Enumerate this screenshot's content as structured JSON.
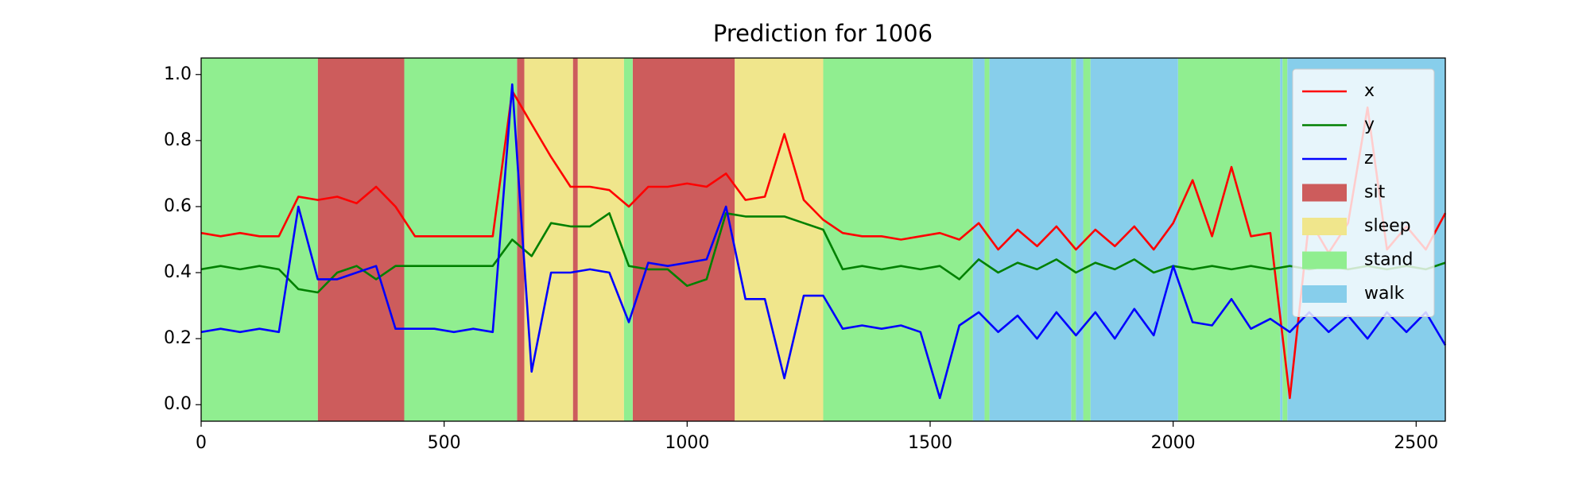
{
  "chart_data": {
    "type": "line",
    "title": "Prediction for 1006",
    "x": [
      0,
      40,
      80,
      120,
      160,
      200,
      240,
      280,
      320,
      360,
      400,
      440,
      480,
      520,
      560,
      600,
      640,
      680,
      720,
      760,
      800,
      840,
      880,
      920,
      960,
      1000,
      1040,
      1080,
      1120,
      1160,
      1200,
      1240,
      1280,
      1320,
      1360,
      1400,
      1440,
      1480,
      1520,
      1560,
      1600,
      1640,
      1680,
      1720,
      1760,
      1800,
      1840,
      1880,
      1920,
      1960,
      2000,
      2040,
      2080,
      2120,
      2160,
      2200,
      2240,
      2280,
      2320,
      2360,
      2400,
      2440,
      2480,
      2520,
      2560
    ],
    "series": [
      {
        "name": "x",
        "color": "#ff0000",
        "values": [
          0.52,
          0.51,
          0.52,
          0.51,
          0.51,
          0.63,
          0.62,
          0.63,
          0.61,
          0.66,
          0.6,
          0.51,
          0.51,
          0.51,
          0.51,
          0.51,
          0.95,
          0.85,
          0.75,
          0.66,
          0.66,
          0.65,
          0.6,
          0.66,
          0.66,
          0.67,
          0.66,
          0.7,
          0.62,
          0.63,
          0.82,
          0.62,
          0.56,
          0.52,
          0.51,
          0.51,
          0.5,
          0.51,
          0.52,
          0.5,
          0.55,
          0.47,
          0.53,
          0.48,
          0.54,
          0.47,
          0.53,
          0.48,
          0.54,
          0.47,
          0.55,
          0.68,
          0.51,
          0.72,
          0.51,
          0.52,
          0.02,
          0.56,
          0.46,
          0.55,
          0.9,
          0.47,
          0.54,
          0.47,
          0.58
        ]
      },
      {
        "name": "y",
        "color": "#008000",
        "values": [
          0.41,
          0.42,
          0.41,
          0.42,
          0.41,
          0.35,
          0.34,
          0.4,
          0.42,
          0.38,
          0.42,
          0.42,
          0.42,
          0.42,
          0.42,
          0.42,
          0.5,
          0.45,
          0.55,
          0.54,
          0.54,
          0.58,
          0.42,
          0.41,
          0.41,
          0.36,
          0.38,
          0.58,
          0.57,
          0.57,
          0.57,
          0.55,
          0.53,
          0.41,
          0.42,
          0.41,
          0.42,
          0.41,
          0.42,
          0.38,
          0.44,
          0.4,
          0.43,
          0.41,
          0.44,
          0.4,
          0.43,
          0.41,
          0.44,
          0.4,
          0.42,
          0.41,
          0.42,
          0.41,
          0.42,
          0.41,
          0.42,
          0.41,
          0.42,
          0.41,
          0.42,
          0.41,
          0.42,
          0.41,
          0.43
        ]
      },
      {
        "name": "z",
        "color": "#0000ff",
        "values": [
          0.22,
          0.23,
          0.22,
          0.23,
          0.22,
          0.6,
          0.38,
          0.38,
          0.4,
          0.42,
          0.23,
          0.23,
          0.23,
          0.22,
          0.23,
          0.22,
          0.97,
          0.1,
          0.4,
          0.4,
          0.41,
          0.4,
          0.25,
          0.43,
          0.42,
          0.43,
          0.44,
          0.6,
          0.32,
          0.32,
          0.08,
          0.33,
          0.33,
          0.23,
          0.24,
          0.23,
          0.24,
          0.22,
          0.02,
          0.24,
          0.28,
          0.22,
          0.27,
          0.2,
          0.28,
          0.21,
          0.28,
          0.2,
          0.29,
          0.21,
          0.42,
          0.25,
          0.24,
          0.32,
          0.23,
          0.26,
          0.22,
          0.28,
          0.22,
          0.27,
          0.2,
          0.28,
          0.22,
          0.28,
          0.18
        ]
      }
    ],
    "classes": [
      {
        "name": "sit",
        "color": "#cd5c5c",
        "spans": [
          [
            240,
            418
          ],
          [
            650,
            665
          ],
          [
            765,
            775
          ],
          [
            888,
            1098
          ]
        ]
      },
      {
        "name": "sleep",
        "color": "#f0e68c",
        "spans": [
          [
            665,
            765
          ],
          [
            775,
            870
          ],
          [
            1098,
            1280
          ]
        ]
      },
      {
        "name": "stand",
        "color": "#90ee90",
        "spans": [
          [
            0,
            240
          ],
          [
            418,
            650
          ],
          [
            870,
            888
          ],
          [
            1280,
            1588
          ],
          [
            1612,
            1622
          ],
          [
            1790,
            1800
          ],
          [
            1815,
            1830
          ],
          [
            2010,
            2220
          ],
          [
            2225,
            2235
          ]
        ]
      },
      {
        "name": "walk",
        "color": "#87ceeb",
        "spans": [
          [
            1588,
            1612
          ],
          [
            1622,
            1790
          ],
          [
            1800,
            1815
          ],
          [
            1830,
            2010
          ],
          [
            2220,
            2225
          ],
          [
            2235,
            2560
          ]
        ]
      }
    ],
    "xlim": [
      0,
      2560
    ],
    "ylim": [
      -0.05,
      1.05
    ],
    "xticks": [
      0,
      500,
      1000,
      1500,
      2000,
      2500
    ],
    "yticks": [
      {
        "value": 0,
        "label": "0.0"
      },
      {
        "value": 0.2,
        "label": "0.2"
      },
      {
        "value": 0.4,
        "label": "0.4"
      },
      {
        "value": 0.6,
        "label": "0.6"
      },
      {
        "value": 0.8,
        "label": "0.8"
      },
      {
        "value": 1,
        "label": "1.0"
      }
    ],
    "legend": "upper right"
  }
}
